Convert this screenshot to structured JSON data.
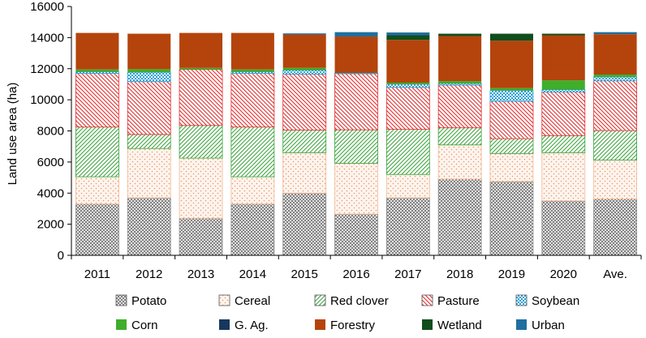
{
  "chart_data": {
    "type": "bar",
    "stacked": true,
    "title": "",
    "xlabel": "",
    "ylabel": "Land use area (ha)",
    "ylim": [
      0,
      16000
    ],
    "yticks": [
      0,
      2000,
      4000,
      6000,
      8000,
      10000,
      12000,
      14000,
      16000
    ],
    "ytick_labels": [
      "0",
      "2000",
      "4000",
      "6000",
      "8000",
      "10000",
      "12000",
      "14000",
      "16000"
    ],
    "categories": [
      "2011",
      "2012",
      "2013",
      "2014",
      "2015",
      "2016",
      "2017",
      "2018",
      "2019",
      "2020",
      "Ave."
    ],
    "legend_position": "bottom",
    "series": [
      {
        "name": "Potato",
        "color": "#8c8c8c",
        "pattern": "crosshatch",
        "values": [
          3300,
          3700,
          2380,
          3300,
          4000,
          2650,
          3700,
          4900,
          4750,
          3500,
          3620
        ]
      },
      {
        "name": "Cereal",
        "color": "#f3b890",
        "pattern": "dots",
        "values": [
          1750,
          3170,
          3870,
          1750,
          2600,
          3270,
          1500,
          2200,
          1800,
          3100,
          2500
        ]
      },
      {
        "name": "Red clover",
        "color": "#3aa23a",
        "pattern": "diagonal",
        "values": [
          3200,
          900,
          2100,
          3200,
          1450,
          2150,
          2900,
          1100,
          950,
          1100,
          1900
        ]
      },
      {
        "name": "Pasture",
        "color": "#e03030",
        "pattern": "diagonal-back",
        "values": [
          3450,
          3400,
          3600,
          3450,
          3600,
          3600,
          2700,
          2750,
          2400,
          2800,
          3200
        ]
      },
      {
        "name": "Soybean",
        "color": "#2aa0d8",
        "pattern": "checker",
        "values": [
          100,
          600,
          0,
          100,
          250,
          50,
          200,
          100,
          700,
          150,
          250
        ]
      },
      {
        "name": "Corn",
        "color": "#3fae2a",
        "pattern": "solid",
        "values": [
          150,
          200,
          100,
          150,
          150,
          0,
          100,
          150,
          150,
          600,
          150
        ]
      },
      {
        "name": "G. Ag.",
        "color": "#17375e",
        "pattern": "solid",
        "values": [
          0,
          0,
          0,
          0,
          0,
          0,
          0,
          0,
          0,
          0,
          0
        ]
      },
      {
        "name": "Forestry",
        "color": "#b4440c",
        "pattern": "solid",
        "values": [
          2350,
          2280,
          2250,
          2350,
          2150,
          2350,
          2750,
          2900,
          3050,
          2900,
          2600
        ]
      },
      {
        "name": "Wetland",
        "color": "#124d1c",
        "pattern": "solid",
        "values": [
          0,
          0,
          0,
          0,
          0,
          0,
          300,
          150,
          450,
          100,
          0
        ]
      },
      {
        "name": "Urban",
        "color": "#1f6f9f",
        "pattern": "solid",
        "values": [
          0,
          0,
          0,
          0,
          70,
          280,
          180,
          0,
          0,
          0,
          130
        ]
      }
    ]
  }
}
